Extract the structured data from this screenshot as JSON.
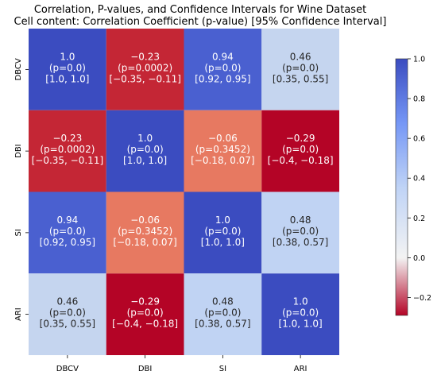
{
  "chart_data": {
    "type": "heatmap",
    "title": "Correlation, P-values, and Confidence Intervals for Wine Dataset",
    "subtitle": "Cell content: Correlation Coefficient (p-value) [95% Confidence Interval]",
    "row_labels": [
      "DBCV",
      "DBI",
      "SI",
      "ARI"
    ],
    "col_labels": [
      "DBCV",
      "DBI",
      "SI",
      "ARI"
    ],
    "values": [
      [
        1.0,
        -0.23,
        0.94,
        0.46
      ],
      [
        -0.23,
        1.0,
        -0.06,
        -0.29
      ],
      [
        0.94,
        -0.06,
        1.0,
        0.48
      ],
      [
        0.46,
        -0.29,
        0.48,
        1.0
      ]
    ],
    "cells": [
      [
        {
          "r": "1.0",
          "p": "(p=0.0)",
          "ci": "[1.0, 1.0]"
        },
        {
          "r": "−0.23",
          "p": "(p=0.0002)",
          "ci": "[−0.35, −0.11]"
        },
        {
          "r": "0.94",
          "p": "(p=0.0)",
          "ci": "[0.92, 0.95]"
        },
        {
          "r": "0.46",
          "p": "(p=0.0)",
          "ci": "[0.35, 0.55]"
        }
      ],
      [
        {
          "r": "−0.23",
          "p": "(p=0.0002)",
          "ci": "[−0.35, −0.11]"
        },
        {
          "r": "1.0",
          "p": "(p=0.0)",
          "ci": "[1.0, 1.0]"
        },
        {
          "r": "−0.06",
          "p": "(p=0.3452)",
          "ci": "[−0.18, 0.07]"
        },
        {
          "r": "−0.29",
          "p": "(p=0.0)",
          "ci": "[−0.4, −0.18]"
        }
      ],
      [
        {
          "r": "0.94",
          "p": "(p=0.0)",
          "ci": "[0.92, 0.95]"
        },
        {
          "r": "−0.06",
          "p": "(p=0.3452)",
          "ci": "[−0.18, 0.07]"
        },
        {
          "r": "1.0",
          "p": "(p=0.0)",
          "ci": "[1.0, 1.0]"
        },
        {
          "r": "0.48",
          "p": "(p=0.0)",
          "ci": "[0.38, 0.57]"
        }
      ],
      [
        {
          "r": "0.46",
          "p": "(p=0.0)",
          "ci": "[0.35, 0.55]"
        },
        {
          "r": "−0.29",
          "p": "(p=0.0)",
          "ci": "[−0.4, −0.18]"
        },
        {
          "r": "0.48",
          "p": "(p=0.0)",
          "ci": "[0.38, 0.57]"
        },
        {
          "r": "1.0",
          "p": "(p=0.0)",
          "ci": "[1.0, 1.0]"
        }
      ]
    ],
    "colorbar": {
      "min": -0.29,
      "max": 1.0,
      "ticks": [
        1.0,
        0.8,
        0.6,
        0.4,
        0.2,
        0.0,
        -0.2
      ],
      "tick_labels": [
        "1.0",
        "0.8",
        "0.6",
        "0.4",
        "0.2",
        "0.0",
        "−0.2"
      ],
      "colormap": "coolwarm_r"
    },
    "grid": false,
    "legend": "colorbar-right"
  }
}
